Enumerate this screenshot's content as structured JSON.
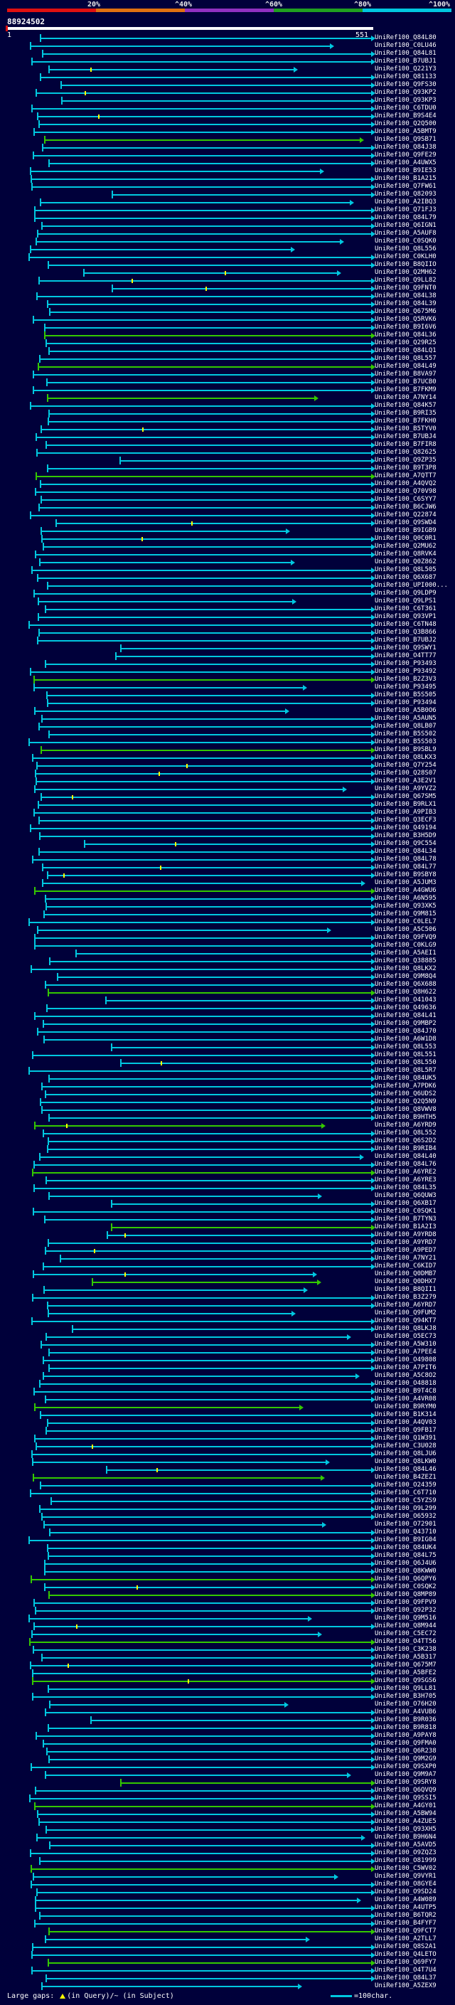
{
  "scale": {
    "labels": [
      "20%",
      "^40%",
      "^60%",
      "^80%",
      "^100%"
    ],
    "colors": [
      "#e01010",
      "#e07010",
      "#9030c0",
      "#20a020",
      "#00c8e0"
    ]
  },
  "query": {
    "id": "88924502",
    "start": "1",
    "end": "551"
  },
  "hit_colors": {
    "full": "#00c8e0",
    "partial": "#34c800",
    "gap_tick": "#ffff00",
    "start_marker": "#e01010"
  },
  "hits": [
    "UniRef100_Q84L80",
    "UniRef100_C0LU46",
    "UniRef100_Q84L81",
    "UniRef100_B7UBJ1",
    "UniRef100_Q221Y3",
    "UniRef100_Q81133",
    "UniRef100_Q9FS30",
    "UniRef100_Q93KP2",
    "UniRef100_Q93KP3",
    "UniRef100_C6TDU0",
    "UniRef100_B9S4E4",
    "UniRef100_Q2Q500",
    "UniRef100_A5BMT9",
    "UniRef100_Q9SB71",
    "UniRef100_Q84J38",
    "UniRef100_Q9FE29",
    "UniRef100_A4UWX5",
    "UniRef100_B9IE53",
    "UniRef100_B1A215",
    "UniRef100_Q7FW61",
    "UniRef100_Q82093",
    "UniRef100_A2IBQ3",
    "UniRef100_Q71FJ3",
    "UniRef100_Q84L79",
    "UniRef100_Q6IGN1",
    "UniRef100_A5AUF8",
    "UniRef100_C0SQK0",
    "UniRef100_Q8L556",
    "UniRef100_C0KLH0",
    "UniRef100_B8QIIO",
    "UniRef100_Q2MH62",
    "UniRef100_Q9LL82",
    "UniRef100_Q9FNT0",
    "UniRef100_Q84L38",
    "UniRef100_Q84L39",
    "UniRef100_Q675M6",
    "UniRef100_Q5RVK6",
    "UniRef100_B9I6V6",
    "UniRef100_Q84L36",
    "UniRef100_Q29R25",
    "UniRef100_Q84LQ1",
    "UniRef100_Q8L557",
    "UniRef100_Q84L49",
    "UniRef100_B8VA97",
    "UniRef100_B7UCB0",
    "UniRef100_B7FKM9",
    "UniRef100_A7NY14",
    "UniRef100_Q84K57",
    "UniRef100_B9RI35",
    "UniRef100_B7FKH0",
    "UniRef100_B5TYV0",
    "UniRef100_B7UBJ4",
    "UniRef100_B7FIR8",
    "UniRef100_Q82625",
    "UniRef100_Q9ZP35",
    "UniRef100_B9T3P8",
    "UniRef100_A7QTT7",
    "UniRef100_A4QVQ2",
    "UniRef100_Q70V98",
    "UniRef100_C6SYY7",
    "UniRef100_B6CJW6",
    "UniRef100_Q22874",
    "UniRef100_Q9SWD4",
    "UniRef100_B9IGB9",
    "UniRef100_Q0C0R1",
    "UniRef100_Q2MU62",
    "UniRef100_Q8RVK4",
    "UniRef100_Q0Z862",
    "UniRef100_Q8L505",
    "UniRef100_Q6X687",
    "UniRef100_UPI000...",
    "UniRef100_Q9LDP9",
    "UniRef100_Q9LPS1",
    "UniRef100_C6T361",
    "UniRef100_Q93VP1",
    "UniRef100_C6TN48",
    "UniRef100_Q3B866",
    "UniRef100_B7UBJ2",
    "UniRef100_Q9SWY1",
    "UniRef100_O4TT77",
    "UniRef100_P93493",
    "UniRef100_P93492",
    "UniRef100_B2Z3V3",
    "UniRef100_P93495",
    "UniRef100_B5S505",
    "UniRef100_P93494",
    "UniRef100_A5B0O6",
    "UniRef100_A5AUN5",
    "UniRef100_Q8LB07",
    "UniRef100_B5S502",
    "UniRef100_B5S503",
    "UniRef100_B9SBL9",
    "UniRef100_Q8LKX3",
    "UniRef100_Q7Y254",
    "UniRef100_Q28S07",
    "UniRef100_A3E2V1",
    "UniRef100_A9YVZ2",
    "UniRef100_Q67SM5",
    "UniRef100_B9RLX1",
    "UniRef100_A9PIB3",
    "UniRef100_Q3ECF3",
    "UniRef100_Q49194",
    "UniRef100_B3H5D9",
    "UniRef100_Q9C554",
    "UniRef100_Q84L34",
    "UniRef100_Q84L78",
    "UniRef100_Q84L77",
    "UniRef100_B9SBY8",
    "UniRef100_A5JUM3",
    "UniRef100_A4GWU6",
    "UniRef100_A6N595",
    "UniRef100_Q93XK5",
    "UniRef100_Q9M815",
    "UniRef100_C0LEL7",
    "UniRef100_A5C506",
    "UniRef100_Q9FVQ9",
    "UniRef100_C0KLG9",
    "UniRef100_A5AEI1",
    "UniRef100_Q38885",
    "UniRef100_Q8LKX2",
    "UniRef100_Q9M8Q4",
    "UniRef100_Q6X688",
    "UniRef100_Q8H622",
    "UniRef100_O41043",
    "UniRef100_Q49636",
    "UniRef100_Q84L41",
    "UniRef100_Q9MBP2",
    "UniRef100_Q84J70",
    "UniRef100_A6W1D8",
    "UniRef100_Q8L553",
    "UniRef100_Q8L551",
    "UniRef100_Q8L550",
    "UniRef100_Q8L5R7",
    "UniRef100_Q84UK5",
    "UniRef100_A7PDK6",
    "UniRef100_Q6UDS2",
    "UniRef100_Q2Q5N9",
    "UniRef100_Q8VWV8",
    "UniRef100_B9HTH5",
    "UniRef100_A6YRD9",
    "UniRef100_Q8L552",
    "UniRef100_Q6S2D2",
    "UniRef100_B9RIB4",
    "UniRef100_Q84L40",
    "UniRef100_Q84L76",
    "UniRef100_A6YRE2",
    "UniRef100_A6YRE3",
    "UniRef100_Q84L35",
    "UniRef100_Q6QUW3",
    "UniRef100_Q6XB17",
    "UniRef100_C0SQK1",
    "UniRef100_B7TYN3",
    "UniRef100_B1A2I3",
    "UniRef100_A9YRD8",
    "UniRef100_A9YRD7",
    "UniRef100_A9PED7",
    "UniRef100_A7NY21",
    "UniRef100_C6KID7",
    "UniRef100_Q0DMB7",
    "UniRef100_Q0DHX7",
    "UniRef100_B8QII1",
    "UniRef100_B3Z279",
    "UniRef100_A6YRD7",
    "UniRef100_Q9FUM2",
    "UniRef100_Q94KT7",
    "UniRef100_Q8LKJ8",
    "UniRef100_O5EC73",
    "UniRef100_A5W310",
    "UniRef100_A7PEE4",
    "UniRef100_O49808",
    "UniRef100_A7PIT6",
    "UniRef100_A5C8O2",
    "UniRef100_O48818",
    "UniRef100_B9T4C8",
    "UniRef100_A4VR08",
    "UniRef100_B9RYM0",
    "UniRef100_B1K314",
    "UniRef100_A4QV03",
    "UniRef100_Q9FB17",
    "UniRef100_Q1W391",
    "UniRef100_C3U028",
    "UniRef100_Q8LJU6",
    "UniRef100_Q8LKW0",
    "UniRef100_Q84L46",
    "UniRef100_B4ZEZ1",
    "UniRef100_O24359",
    "UniRef100_C6T710",
    "UniRef100_C5YZS9",
    "UniRef100_O9L299",
    "UniRef100_O65932",
    "UniRef100_O72901",
    "UniRef100_Q43710",
    "UniRef100_B9IG04",
    "UniRef100_Q84UK4",
    "UniRef100_Q84L75",
    "UniRef100_Q6J4U6",
    "UniRef100_Q8KWW0",
    "UniRef100_Q6QPY6",
    "UniRef100_C0SQK2",
    "UniRef100_Q8MP89",
    "UniRef100_Q9FPV9",
    "UniRef100_Q92P32",
    "UniRef100_Q9M516",
    "UniRef100_Q8M944",
    "UniRef100_C5EC72",
    "UniRef100_O4TT56",
    "UniRef100_C3K238",
    "UniRef100_A5B317",
    "UniRef100_Q675M7",
    "UniRef100_A5BFE2",
    "UniRef100_Q9SGS6",
    "UniRef100_Q9LL81",
    "UniRef100_B3H705",
    "UniRef100_O76H20",
    "UniRef100_A4VUB6",
    "UniRef100_B9R036",
    "UniRef100_B9R818",
    "UniRef100_A9PAY8",
    "UniRef100_Q9FMA0",
    "UniRef100_Q6R238",
    "UniRef100_Q9M2G9",
    "UniRef100_Q9SXP0",
    "UniRef100_Q9M9A7",
    "UniRef100_Q9SRY8",
    "UniRef100_Q6QVQ9",
    "UniRef100_Q9SSI5",
    "UniRef100_A4GY01",
    "UniRef100_A5BW94",
    "UniRef100_A4ZUE5",
    "UniRef100_Q93XH5",
    "UniRef100_B9H6N4",
    "UniRef100_A5AVD5",
    "UniRef100_O9ZQZ3",
    "UniRef100_O81999",
    "UniRef100_C5WV02",
    "UniRef100_Q9VYR1",
    "UniRef100_O8GYE4",
    "UniRef100_O9SD24",
    "UniRef100_A4W089",
    "UniRef100_A4UTP5",
    "UniRef100_B6TQR2",
    "UniRef100_B4FYF7",
    "UniRef100_Q9FCT7",
    "UniRef100_A2TLL7",
    "UniRef100_Q8S2A1",
    "UniRef100_Q4LETO",
    "UniRef100_Q69FY7",
    "UniRef100_O4T7U4",
    "UniRef100_Q84L37",
    "UniRef100_A5ZEX9"
  ],
  "legend": {
    "gaps_text": "Large gaps:",
    "in_query": "(in Query)/~ (in Subject)",
    "scale_text": "=100char."
  }
}
